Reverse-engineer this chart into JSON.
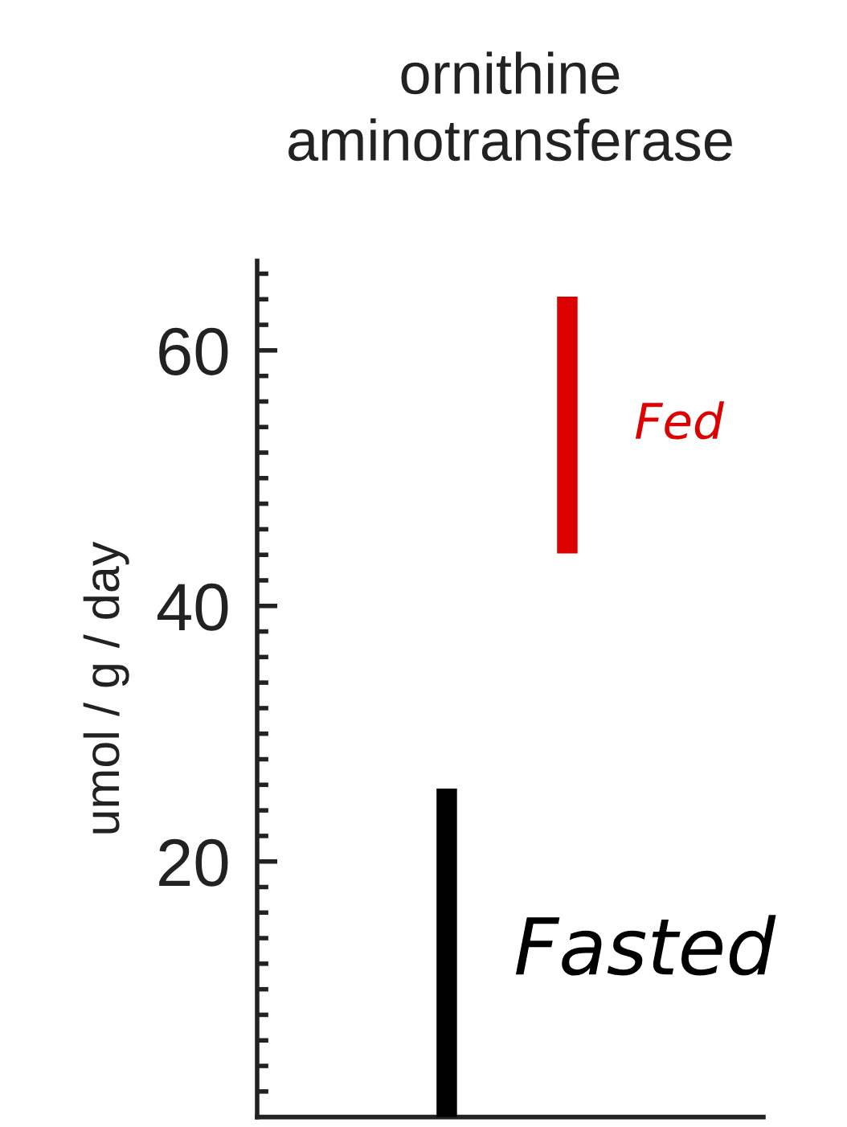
{
  "chart_data": {
    "type": "bar",
    "title": "ornithine\naminotransferase",
    "ylabel": "umol / g / day",
    "categories": [
      null,
      null
    ],
    "values": [
      25.7,
      20.1
    ],
    "colors": [
      "#000000",
      "#dd0000"
    ],
    "annotations": [
      "Fasted",
      "Fed"
    ],
    "base": [
      0,
      44.1
    ],
    "ylim": [
      0,
      67
    ],
    "yticks": [
      {
        "value": 2,
        "label": null
      },
      {
        "value": 4,
        "label": null
      },
      {
        "value": 6,
        "label": null
      },
      {
        "value": 8,
        "label": null
      },
      {
        "value": 10,
        "label": null
      },
      {
        "value": 12,
        "label": null
      },
      {
        "value": 14,
        "label": null
      },
      {
        "value": 16,
        "label": null
      },
      {
        "value": 18,
        "label": null
      },
      20,
      {
        "value": 22,
        "label": null
      },
      {
        "value": 24,
        "label": null
      },
      {
        "value": 26,
        "label": null
      },
      {
        "value": 28,
        "label": null
      },
      {
        "value": 30,
        "label": null
      },
      {
        "value": 32,
        "label": null
      },
      {
        "value": 34,
        "label": null
      },
      {
        "value": 36,
        "label": null
      },
      {
        "value": 38,
        "label": null
      },
      40,
      {
        "value": 42,
        "label": null
      },
      {
        "value": 44,
        "label": null
      },
      {
        "value": 46,
        "label": null
      },
      {
        "value": 48,
        "label": null
      },
      {
        "value": 50,
        "label": null
      },
      {
        "value": 52,
        "label": null
      },
      {
        "value": 54,
        "label": null
      },
      {
        "value": 56,
        "label": null
      },
      {
        "value": 58,
        "label": null
      },
      60,
      {
        "value": 62,
        "label": null
      },
      {
        "value": 64,
        "label": null
      },
      {
        "value": 66,
        "label": null
      }
    ],
    "grid": false,
    "legend": false
  }
}
